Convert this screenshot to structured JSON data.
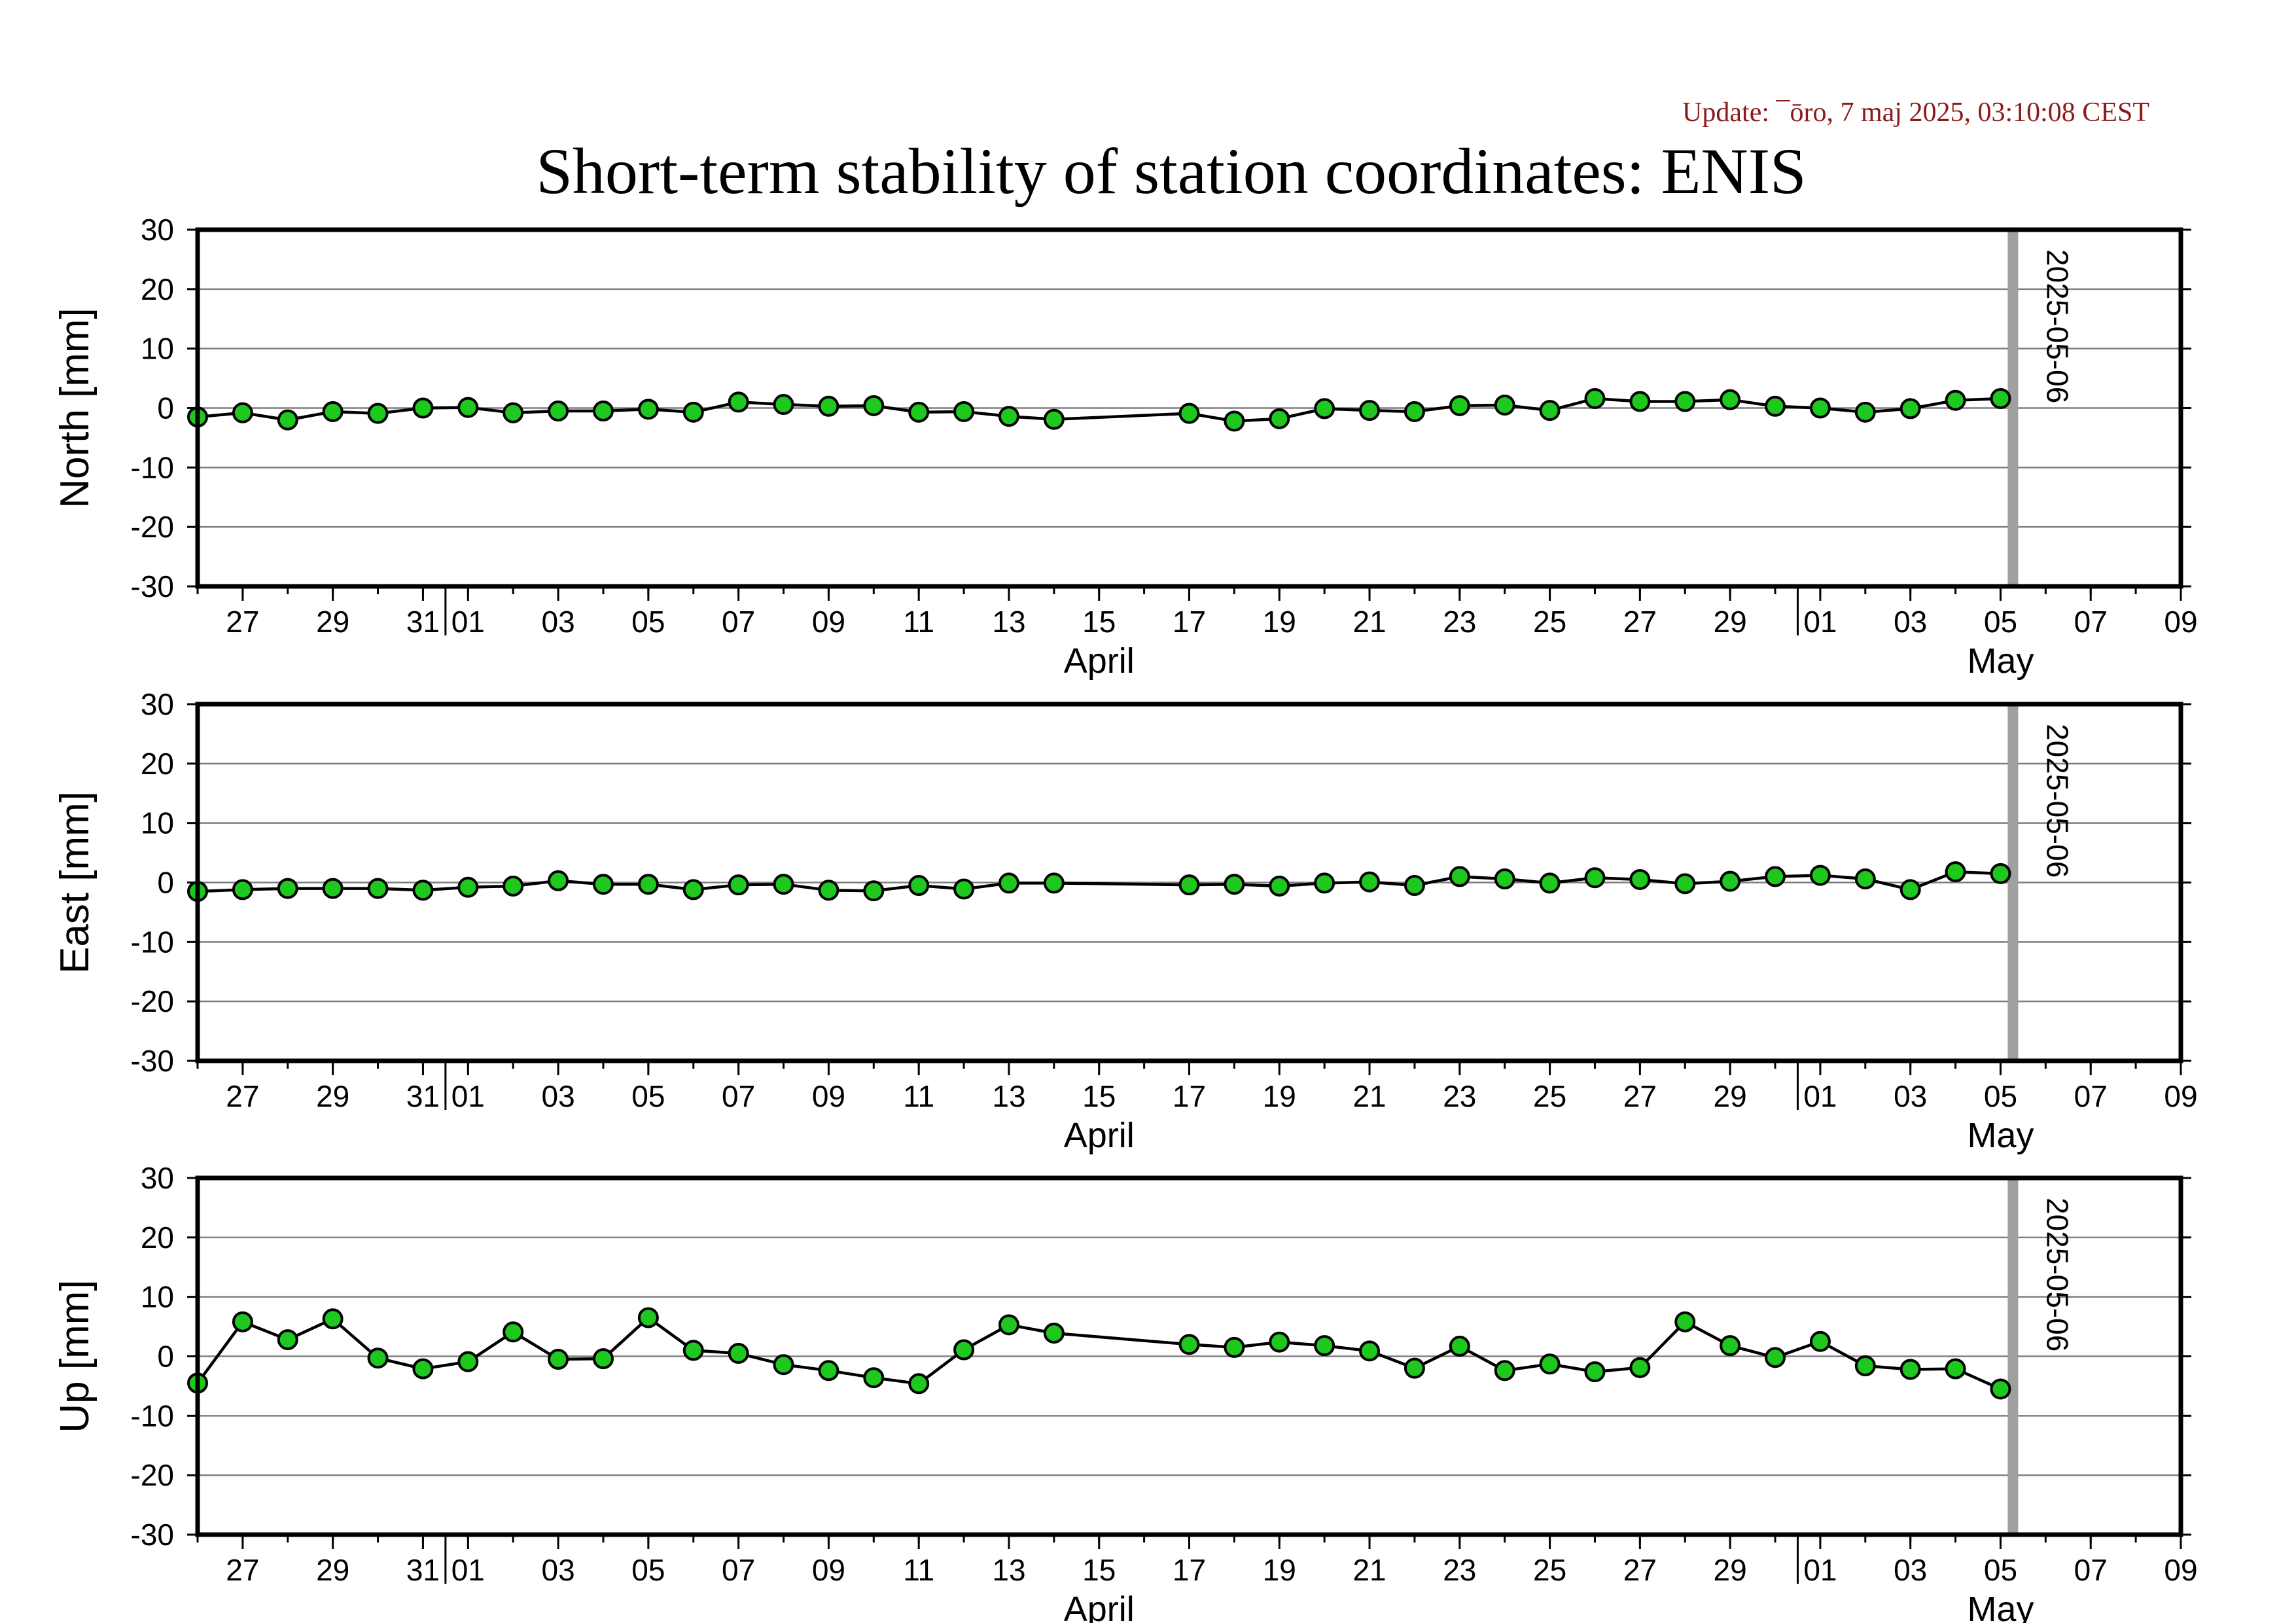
{
  "update_text": "Update: ¯ōro, 7 maj 2025, 03:10:08 CEST",
  "colors": {
    "marker_fill": "#1ec81e",
    "marker_stroke": "#000000",
    "line": "#000000",
    "grid": "#7f7f7f",
    "current_day_bar": "#a0a0a0",
    "update_text": "#8b1a1a"
  },
  "chart_data": {
    "type": "line",
    "title": "Short-term stability of station coordinates: ENIS",
    "x_start": "2025-03-26",
    "x_end": "2025-05-09",
    "ylim": [
      -30,
      30
    ],
    "yticks": [
      30,
      20,
      10,
      0,
      -10,
      -20,
      -30
    ],
    "grid": true,
    "x_tick_labels": [
      "27",
      "29",
      "31",
      "01",
      "03",
      "05",
      "07",
      "09",
      "11",
      "13",
      "15",
      "17",
      "19",
      "21",
      "23",
      "25",
      "27",
      "29",
      "01",
      "03",
      "05",
      "07",
      "09"
    ],
    "x_tick_dates": [
      "2025-03-27",
      "2025-03-29",
      "2025-03-31",
      "2025-04-01",
      "2025-04-03",
      "2025-04-05",
      "2025-04-07",
      "2025-04-09",
      "2025-04-11",
      "2025-04-13",
      "2025-04-15",
      "2025-04-17",
      "2025-04-19",
      "2025-04-21",
      "2025-04-23",
      "2025-04-25",
      "2025-04-27",
      "2025-04-29",
      "2025-05-01",
      "2025-05-03",
      "2025-05-05",
      "2025-05-07",
      "2025-05-09"
    ],
    "month_labels": [
      {
        "label": "April",
        "date": "2025-04-15"
      },
      {
        "label": "May",
        "date": "2025-05-05"
      }
    ],
    "marker_line": {
      "date": "2025-05-05",
      "label": "2025-05-06"
    },
    "x": [
      "2025-03-26",
      "2025-03-27",
      "2025-03-28",
      "2025-03-29",
      "2025-03-30",
      "2025-03-31",
      "2025-04-01",
      "2025-04-02",
      "2025-04-03",
      "2025-04-04",
      "2025-04-05",
      "2025-04-06",
      "2025-04-07",
      "2025-04-08",
      "2025-04-09",
      "2025-04-10",
      "2025-04-11",
      "2025-04-12",
      "2025-04-13",
      "2025-04-14",
      "2025-04-17",
      "2025-04-18",
      "2025-04-19",
      "2025-04-20",
      "2025-04-21",
      "2025-04-22",
      "2025-04-23",
      "2025-04-24",
      "2025-04-25",
      "2025-04-26",
      "2025-04-27",
      "2025-04-28",
      "2025-04-29",
      "2025-04-30",
      "2025-05-01",
      "2025-05-02",
      "2025-05-03",
      "2025-05-04",
      "2025-05-05"
    ],
    "panels": [
      {
        "ylabel": "North [mm]",
        "values": [
          -1.5,
          -0.8,
          -2.0,
          -0.6,
          -0.9,
          0.0,
          0.1,
          -0.8,
          -0.5,
          -0.5,
          -0.2,
          -0.7,
          1.0,
          0.6,
          0.3,
          0.4,
          -0.7,
          -0.6,
          -1.4,
          -1.9,
          -0.9,
          -2.2,
          -1.8,
          -0.1,
          -0.4,
          -0.6,
          0.4,
          0.5,
          -0.4,
          1.6,
          1.1,
          1.1,
          1.4,
          0.3,
          -0.0,
          -0.7,
          -0.1,
          1.3,
          1.6
        ]
      },
      {
        "ylabel": "East [mm]",
        "values": [
          -1.5,
          -1.2,
          -1.0,
          -1.0,
          -1.0,
          -1.3,
          -0.8,
          -0.6,
          0.3,
          -0.3,
          -0.3,
          -1.2,
          -0.4,
          -0.3,
          -1.3,
          -1.4,
          -0.5,
          -1.1,
          -0.1,
          -0.1,
          -0.4,
          -0.3,
          -0.6,
          -0.1,
          0.1,
          -0.5,
          1.0,
          0.6,
          -0.1,
          0.8,
          0.5,
          -0.2,
          0.2,
          1.0,
          1.2,
          0.6,
          -1.2,
          1.8,
          1.5
        ]
      },
      {
        "ylabel": "Up [mm]",
        "values": [
          -4.5,
          5.8,
          2.8,
          6.3,
          -0.3,
          -2.1,
          -0.9,
          4.1,
          -0.5,
          -0.4,
          6.5,
          1.0,
          0.5,
          -1.4,
          -2.4,
          -3.6,
          -4.6,
          1.1,
          5.3,
          3.9,
          2.0,
          1.5,
          2.4,
          1.8,
          0.9,
          -2.0,
          1.7,
          -2.4,
          -1.3,
          -2.6,
          -1.9,
          5.8,
          1.8,
          -0.2,
          2.5,
          -1.6,
          -2.2,
          -2.1,
          -5.5
        ]
      }
    ]
  }
}
